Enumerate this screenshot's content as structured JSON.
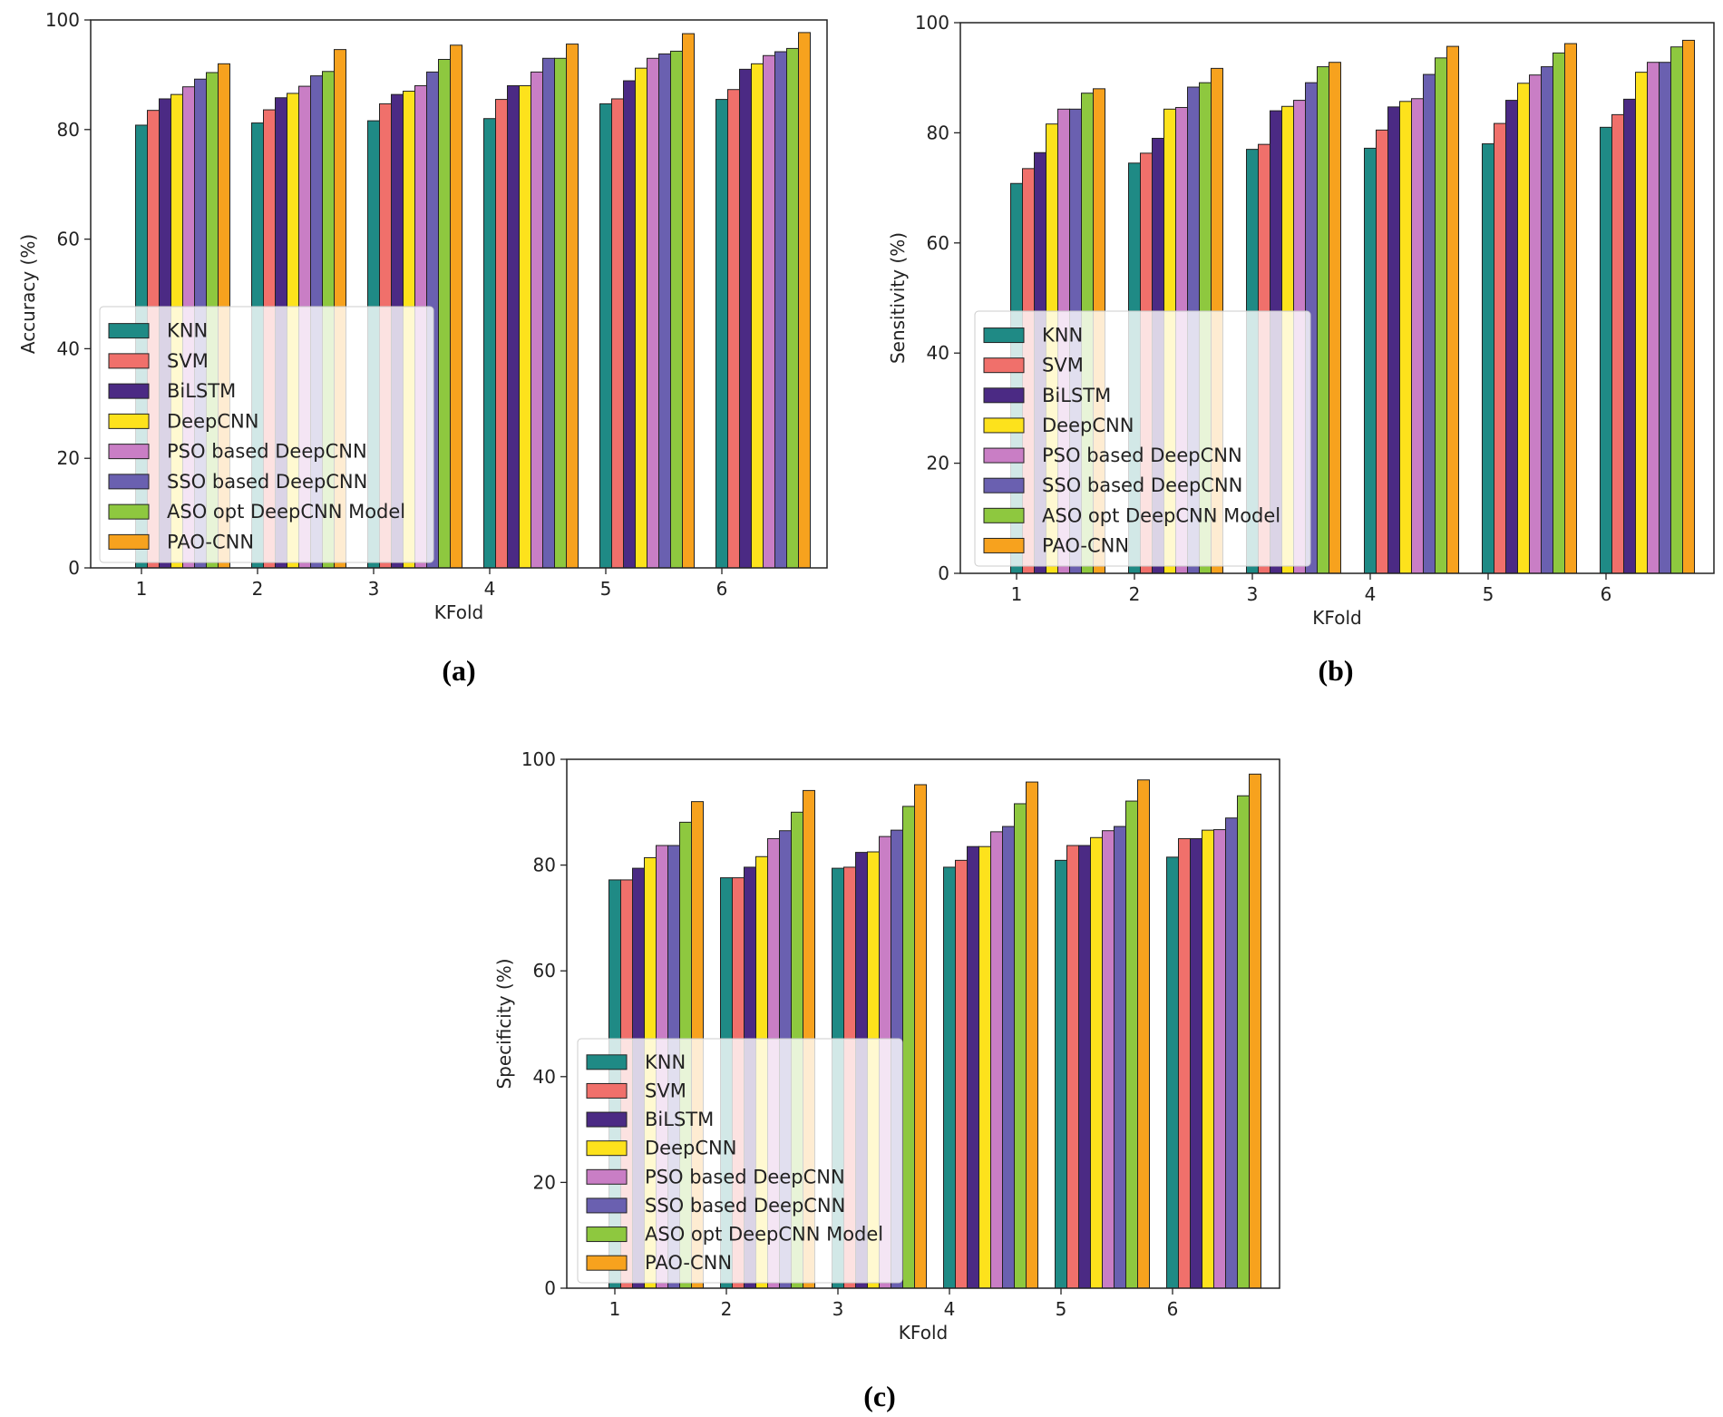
{
  "colors": {
    "KNN": "#1f8a85",
    "SVM": "#f0706b",
    "BiLSTM": "#4b2a84",
    "DeepCNN": "#fde21c",
    "PSO based DeepCNN": "#c97ec5",
    "SSO based DeepCNN": "#6a60b0",
    "ASO opt DeepCNN Model": "#8ec83f",
    "PAO-CNN": "#f7a21e"
  },
  "chart_data": [
    {
      "type": "bar",
      "caption": "(a)",
      "xlabel": "KFold",
      "ylabel": "Accuracy (%)",
      "ylim": [
        0,
        100
      ],
      "yticks": [
        0,
        20,
        40,
        60,
        80,
        100
      ],
      "categories": [
        "1",
        "2",
        "3",
        "4",
        "5",
        "6"
      ],
      "legend_position": "lower-left",
      "series": [
        {
          "name": "KNN",
          "values": [
            80.8,
            81.2,
            81.6,
            82.0,
            84.7,
            85.5
          ]
        },
        {
          "name": "SVM",
          "values": [
            83.5,
            83.6,
            84.7,
            85.5,
            85.6,
            87.3
          ]
        },
        {
          "name": "BiLSTM",
          "values": [
            85.6,
            85.8,
            86.4,
            88.0,
            88.9,
            91.0
          ]
        },
        {
          "name": "DeepCNN",
          "values": [
            86.4,
            86.6,
            87.0,
            88.0,
            91.2,
            92.0
          ]
        },
        {
          "name": "PSO based DeepCNN",
          "values": [
            87.8,
            87.9,
            88.0,
            90.5,
            93.0,
            93.5
          ]
        },
        {
          "name": "SSO based DeepCNN",
          "values": [
            89.2,
            89.8,
            90.5,
            93.0,
            93.8,
            94.2
          ]
        },
        {
          "name": "ASO opt DeepCNN Model",
          "values": [
            90.4,
            90.6,
            92.8,
            93.0,
            94.3,
            94.8
          ]
        },
        {
          "name": "PAO-CNN",
          "values": [
            92.0,
            94.6,
            95.4,
            95.6,
            97.5,
            97.7
          ]
        }
      ]
    },
    {
      "type": "bar",
      "caption": "(b)",
      "xlabel": "KFold",
      "ylabel": "Sensitivity (%)",
      "ylim": [
        0,
        100
      ],
      "yticks": [
        0,
        20,
        40,
        60,
        80,
        100
      ],
      "categories": [
        "1",
        "2",
        "3",
        "4",
        "5",
        "6"
      ],
      "legend_position": "lower-left",
      "series": [
        {
          "name": "KNN",
          "values": [
            70.8,
            74.5,
            77.0,
            77.2,
            78.0,
            81.0
          ]
        },
        {
          "name": "SVM",
          "values": [
            73.5,
            76.3,
            77.9,
            80.5,
            81.7,
            83.3
          ]
        },
        {
          "name": "BiLSTM",
          "values": [
            76.4,
            79.0,
            84.0,
            84.7,
            85.9,
            86.1
          ]
        },
        {
          "name": "DeepCNN",
          "values": [
            81.6,
            84.3,
            84.8,
            85.7,
            89.0,
            91.0
          ]
        },
        {
          "name": "PSO based DeepCNN",
          "values": [
            84.3,
            84.6,
            85.9,
            86.2,
            90.5,
            92.8
          ]
        },
        {
          "name": "SSO based DeepCNN",
          "values": [
            84.3,
            88.3,
            89.1,
            90.6,
            92.0,
            92.8
          ]
        },
        {
          "name": "ASO opt DeepCNN Model",
          "values": [
            87.2,
            89.1,
            92.0,
            93.6,
            94.5,
            95.6
          ]
        },
        {
          "name": "PAO-CNN",
          "values": [
            88.0,
            91.7,
            92.8,
            95.7,
            96.2,
            96.8
          ]
        }
      ]
    },
    {
      "type": "bar",
      "caption": "(c)",
      "xlabel": "KFold",
      "ylabel": "Specificity (%)",
      "ylim": [
        0,
        100
      ],
      "yticks": [
        0,
        20,
        40,
        60,
        80,
        100
      ],
      "categories": [
        "1",
        "2",
        "3",
        "4",
        "5",
        "6"
      ],
      "legend_position": "lower-left",
      "series": [
        {
          "name": "KNN",
          "values": [
            77.2,
            77.6,
            79.4,
            79.6,
            80.9,
            81.5
          ]
        },
        {
          "name": "SVM",
          "values": [
            77.2,
            77.6,
            79.6,
            80.9,
            83.7,
            85.0
          ]
        },
        {
          "name": "BiLSTM",
          "values": [
            79.4,
            79.6,
            82.4,
            83.5,
            83.7,
            85.0
          ]
        },
        {
          "name": "DeepCNN",
          "values": [
            81.4,
            81.6,
            82.5,
            83.5,
            85.2,
            86.6
          ]
        },
        {
          "name": "PSO based DeepCNN",
          "values": [
            83.7,
            85.0,
            85.4,
            86.3,
            86.5,
            86.7
          ]
        },
        {
          "name": "SSO based DeepCNN",
          "values": [
            83.7,
            86.5,
            86.6,
            87.3,
            87.3,
            88.9
          ]
        },
        {
          "name": "ASO opt DeepCNN Model",
          "values": [
            88.1,
            90.0,
            91.1,
            91.6,
            92.1,
            93.1
          ]
        },
        {
          "name": "PAO-CNN",
          "values": [
            92.0,
            94.1,
            95.2,
            95.7,
            96.1,
            97.2
          ]
        }
      ]
    }
  ]
}
